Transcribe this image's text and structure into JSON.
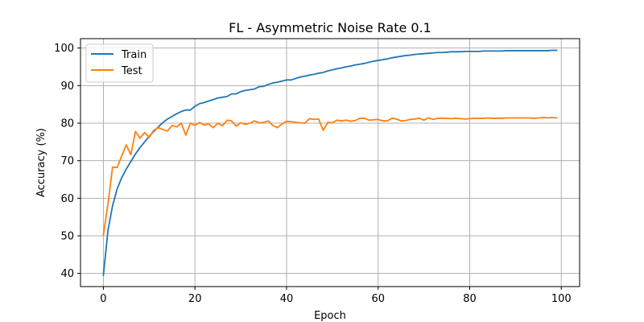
{
  "chart_data": {
    "type": "line",
    "title": "FL - Asymmetric Noise Rate 0.1",
    "xlabel": "Epoch",
    "ylabel": "Accuracy (%)",
    "xlim": [
      -5,
      104
    ],
    "ylim": [
      36.5,
      102.5
    ],
    "xticks": [
      0,
      20,
      40,
      60,
      80,
      100
    ],
    "yticks": [
      40,
      50,
      60,
      70,
      80,
      90,
      100
    ],
    "grid": true,
    "legend_position": "upper-left",
    "series": [
      {
        "name": "Train",
        "color": "#1f77b4",
        "x": [
          0,
          1,
          2,
          3,
          4,
          5,
          6,
          7,
          8,
          9,
          10,
          11,
          12,
          13,
          14,
          15,
          16,
          17,
          18,
          19,
          20,
          21,
          22,
          23,
          24,
          25,
          26,
          27,
          28,
          29,
          30,
          31,
          32,
          33,
          34,
          35,
          36,
          37,
          38,
          39,
          40,
          41,
          42,
          43,
          44,
          45,
          46,
          47,
          48,
          49,
          50,
          51,
          52,
          53,
          54,
          55,
          56,
          57,
          58,
          59,
          60,
          61,
          62,
          63,
          64,
          65,
          66,
          67,
          68,
          69,
          70,
          71,
          72,
          73,
          74,
          75,
          76,
          77,
          78,
          79,
          80,
          81,
          82,
          83,
          84,
          85,
          86,
          87,
          88,
          89,
          90,
          91,
          92,
          93,
          94,
          95,
          96,
          97,
          98,
          99
        ],
        "values": [
          39.5,
          51.5,
          58,
          62.5,
          65.5,
          67.8,
          69.8,
          71.8,
          73.5,
          75,
          76.5,
          77.8,
          79,
          80.2,
          81.1,
          81.8,
          82.5,
          83.1,
          83.5,
          83.5,
          84.5,
          85.2,
          85.5,
          85.9,
          86.3,
          86.7,
          86.9,
          87.1,
          87.8,
          87.8,
          88.4,
          88.7,
          88.9,
          89.1,
          89.7,
          89.8,
          90.3,
          90.7,
          90.9,
          91.2,
          91.5,
          91.5,
          91.9,
          92.3,
          92.5,
          92.8,
          93,
          93.3,
          93.5,
          93.9,
          94.2,
          94.5,
          94.7,
          95,
          95.2,
          95.5,
          95.7,
          95.9,
          96.2,
          96.5,
          96.7,
          96.9,
          97.1,
          97.4,
          97.6,
          97.8,
          98,
          98.1,
          98.3,
          98.4,
          98.5,
          98.6,
          98.7,
          98.8,
          98.8,
          98.9,
          99,
          99,
          99,
          99.1,
          99.1,
          99.1,
          99.1,
          99.2,
          99.2,
          99.2,
          99.2,
          99.2,
          99.3,
          99.3,
          99.3,
          99.3,
          99.3,
          99.3,
          99.3,
          99.3,
          99.3,
          99.3,
          99.4,
          99.4
        ]
      },
      {
        "name": "Test",
        "color": "#ff7f0e",
        "x": [
          0,
          1,
          2,
          3,
          4,
          5,
          6,
          7,
          8,
          9,
          10,
          11,
          12,
          13,
          14,
          15,
          16,
          17,
          18,
          19,
          20,
          21,
          22,
          23,
          24,
          25,
          26,
          27,
          28,
          29,
          30,
          31,
          32,
          33,
          34,
          35,
          36,
          37,
          38,
          39,
          40,
          41,
          42,
          43,
          44,
          45,
          46,
          47,
          48,
          49,
          50,
          51,
          52,
          53,
          54,
          55,
          56,
          57,
          58,
          59,
          60,
          61,
          62,
          63,
          64,
          65,
          66,
          67,
          68,
          69,
          70,
          71,
          72,
          73,
          74,
          75,
          76,
          77,
          78,
          79,
          80,
          81,
          82,
          83,
          84,
          85,
          86,
          87,
          88,
          89,
          90,
          91,
          92,
          93,
          94,
          95,
          96,
          97,
          98,
          99
        ],
        "values": [
          50.2,
          58.5,
          68.3,
          68.2,
          71.3,
          74.2,
          71.6,
          77.8,
          76,
          77.5,
          76.2,
          78.1,
          78.8,
          78.3,
          77.9,
          79.4,
          79,
          80,
          76.8,
          80,
          79.4,
          80.2,
          79.5,
          79.8,
          78.8,
          80,
          79.3,
          80.8,
          80.6,
          79.2,
          80.1,
          79.7,
          80,
          80.6,
          80.1,
          80.2,
          80.6,
          79.4,
          78.8,
          79.8,
          80.5,
          80.4,
          80.2,
          80.1,
          80,
          81.2,
          81,
          81.1,
          78.1,
          80.2,
          80.1,
          80.8,
          80.6,
          80.8,
          80.5,
          80.7,
          81.3,
          81.3,
          80.8,
          80.9,
          81,
          80.6,
          80.6,
          81.3,
          81.1,
          80.6,
          80.7,
          81,
          81.1,
          81.3,
          80.8,
          81.4,
          81,
          81.3,
          81.3,
          81.3,
          81.2,
          81.3,
          81.2,
          81.1,
          81.2,
          81.3,
          81.3,
          81.3,
          81.4,
          81.3,
          81.3,
          81.3,
          81.4,
          81.4,
          81.4,
          81.4,
          81.4,
          81.4,
          81.3,
          81.4,
          81.5,
          81.4,
          81.5,
          81.4
        ]
      }
    ]
  }
}
